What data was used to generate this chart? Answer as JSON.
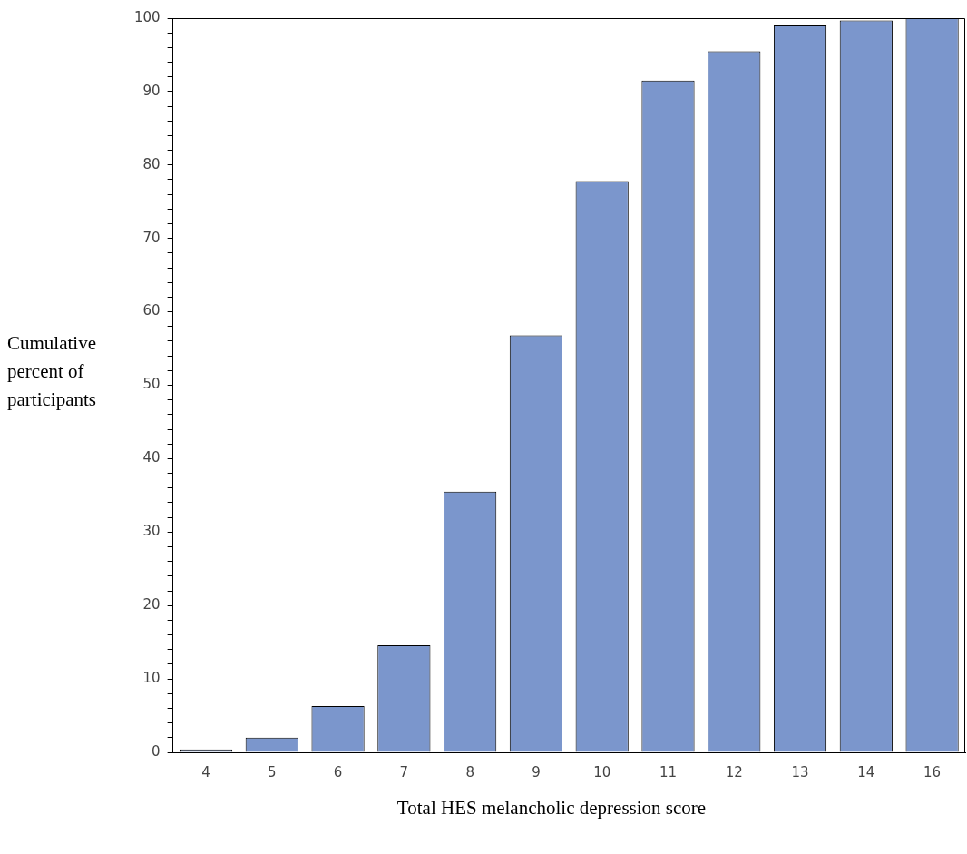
{
  "chart_data": {
    "type": "bar",
    "xlabel": "Total HES melancholic depression score",
    "ylabel": "Cumulative percent of participants",
    "categories": [
      "4",
      "5",
      "6",
      "7",
      "8",
      "9",
      "10",
      "11",
      "12",
      "13",
      "14",
      "16"
    ],
    "values": [
      0.4,
      2.0,
      6.3,
      14.6,
      35.5,
      56.8,
      77.8,
      91.5,
      95.5,
      99.0,
      99.7,
      100
    ],
    "color": "#7b96cc",
    "ylim": [
      0,
      100
    ],
    "yticks": [
      0,
      {
        "value": 2,
        "label": null
      },
      {
        "value": 4,
        "label": null
      },
      {
        "value": 6,
        "label": null
      },
      {
        "value": 8,
        "label": null
      },
      10,
      {
        "value": 12,
        "label": null
      },
      {
        "value": 14,
        "label": null
      },
      {
        "value": 16,
        "label": null
      },
      {
        "value": 18,
        "label": null
      },
      20,
      {
        "value": 22,
        "label": null
      },
      {
        "value": 24,
        "label": null
      },
      {
        "value": 26,
        "label": null
      },
      {
        "value": 28,
        "label": null
      },
      30,
      {
        "value": 32,
        "label": null
      },
      {
        "value": 34,
        "label": null
      },
      {
        "value": 36,
        "label": null
      },
      {
        "value": 38,
        "label": null
      },
      40,
      {
        "value": 42,
        "label": null
      },
      {
        "value": 44,
        "label": null
      },
      {
        "value": 46,
        "label": null
      },
      {
        "value": 48,
        "label": null
      },
      50,
      {
        "value": 52,
        "label": null
      },
      {
        "value": 54,
        "label": null
      },
      {
        "value": 56,
        "label": null
      },
      {
        "value": 58,
        "label": null
      },
      60,
      {
        "value": 62,
        "label": null
      },
      {
        "value": 64,
        "label": null
      },
      {
        "value": 66,
        "label": null
      },
      {
        "value": 68,
        "label": null
      },
      70,
      {
        "value": 72,
        "label": null
      },
      {
        "value": 74,
        "label": null
      },
      {
        "value": 76,
        "label": null
      },
      {
        "value": 78,
        "label": null
      },
      80,
      {
        "value": 82,
        "label": null
      },
      {
        "value": 84,
        "label": null
      },
      {
        "value": 86,
        "label": null
      },
      {
        "value": 88,
        "label": null
      },
      90,
      {
        "value": 92,
        "label": null
      },
      {
        "value": 94,
        "label": null
      },
      {
        "value": 96,
        "label": null
      },
      {
        "value": 98,
        "label": null
      },
      100
    ],
    "grid": false
  }
}
